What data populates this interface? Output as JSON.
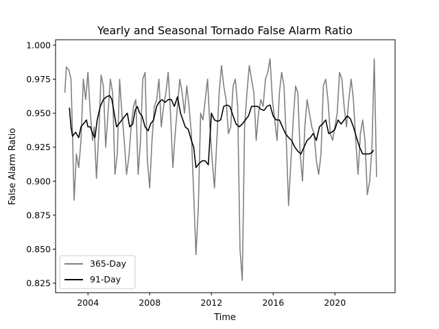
{
  "chart_data": {
    "type": "line",
    "title": "Yearly and Seasonal Tornado False Alarm Ratio",
    "xlabel": "Time",
    "ylabel": "False Alarm Ratio",
    "xlim": [
      2001.9,
      2023.9
    ],
    "ylim": [
      0.818,
      1.004
    ],
    "xticks": [
      2004,
      2008,
      2012,
      2016,
      2020
    ],
    "yticks": [
      0.825,
      0.85,
      0.875,
      0.9,
      0.925,
      0.95,
      0.975,
      1.0
    ],
    "xtick_labels": [
      "2004",
      "2008",
      "2012",
      "2016",
      "2020"
    ],
    "ytick_labels": [
      "0.825",
      "0.850",
      "0.875",
      "0.900",
      "0.925",
      "0.950",
      "0.975",
      "1.000"
    ],
    "grid": false,
    "legend_position": "bottom-left",
    "series": [
      {
        "name": "365-Day",
        "color": "#808080",
        "x": [
          2002.5,
          2002.6,
          2002.75,
          2002.9,
          2003.0,
          2003.1,
          2003.25,
          2003.4,
          2003.55,
          2003.7,
          2003.85,
          2004.0,
          2004.15,
          2004.3,
          2004.4,
          2004.55,
          2004.7,
          2004.85,
          2005.0,
          2005.15,
          2005.3,
          2005.45,
          2005.6,
          2005.75,
          2005.9,
          2006.05,
          2006.2,
          2006.35,
          2006.5,
          2006.65,
          2006.8,
          2006.95,
          2007.1,
          2007.25,
          2007.4,
          2007.55,
          2007.7,
          2007.85,
          2008.0,
          2008.15,
          2008.3,
          2008.45,
          2008.6,
          2008.75,
          2008.9,
          2009.05,
          2009.2,
          2009.35,
          2009.5,
          2009.65,
          2009.8,
          2009.95,
          2010.1,
          2010.25,
          2010.4,
          2010.55,
          2010.7,
          2010.85,
          2011.0,
          2011.15,
          2011.3,
          2011.45,
          2011.6,
          2011.75,
          2011.9,
          2012.05,
          2012.2,
          2012.35,
          2012.5,
          2012.65,
          2012.8,
          2012.95,
          2013.1,
          2013.25,
          2013.4,
          2013.55,
          2013.7,
          2013.85,
          2014.0,
          2014.15,
          2014.3,
          2014.45,
          2014.6,
          2014.75,
          2014.9,
          2015.05,
          2015.2,
          2015.35,
          2015.5,
          2015.65,
          2015.8,
          2015.95,
          2016.1,
          2016.25,
          2016.4,
          2016.55,
          2016.7,
          2016.85,
          2017.0,
          2017.15,
          2017.3,
          2017.45,
          2017.6,
          2017.75,
          2017.9,
          2018.05,
          2018.2,
          2018.35,
          2018.5,
          2018.65,
          2018.8,
          2018.95,
          2019.1,
          2019.25,
          2019.4,
          2019.55,
          2019.7,
          2019.85,
          2020.0,
          2020.15,
          2020.3,
          2020.45,
          2020.6,
          2020.75,
          2020.9,
          2021.05,
          2021.2,
          2021.35,
          2021.5,
          2021.65,
          2021.8,
          2021.95,
          2022.1,
          2022.25,
          2022.4,
          2022.55,
          2022.7
        ],
        "y": [
          0.965,
          0.984,
          0.982,
          0.975,
          0.935,
          0.886,
          0.92,
          0.91,
          0.93,
          0.975,
          0.96,
          0.98,
          0.95,
          0.93,
          0.94,
          0.902,
          0.935,
          0.978,
          0.97,
          0.925,
          0.95,
          0.975,
          0.965,
          0.905,
          0.92,
          0.975,
          0.95,
          0.93,
          0.905,
          0.918,
          0.94,
          0.955,
          0.96,
          0.905,
          0.93,
          0.975,
          0.98,
          0.915,
          0.895,
          0.93,
          0.955,
          0.96,
          0.975,
          0.94,
          0.955,
          0.965,
          0.98,
          0.95,
          0.91,
          0.935,
          0.955,
          0.975,
          0.965,
          0.95,
          0.97,
          0.955,
          0.935,
          0.89,
          0.846,
          0.88,
          0.95,
          0.945,
          0.96,
          0.975,
          0.94,
          0.915,
          0.895,
          0.93,
          0.965,
          0.985,
          0.97,
          0.96,
          0.935,
          0.94,
          0.97,
          0.975,
          0.955,
          0.85,
          0.827,
          0.94,
          0.965,
          0.985,
          0.975,
          0.965,
          0.93,
          0.95,
          0.96,
          0.955,
          0.975,
          0.98,
          0.99,
          0.96,
          0.945,
          0.93,
          0.965,
          0.98,
          0.97,
          0.93,
          0.882,
          0.915,
          0.945,
          0.97,
          0.965,
          0.92,
          0.9,
          0.94,
          0.96,
          0.95,
          0.94,
          0.935,
          0.915,
          0.905,
          0.92,
          0.97,
          0.975,
          0.96,
          0.935,
          0.93,
          0.94,
          0.95,
          0.98,
          0.975,
          0.955,
          0.94,
          0.96,
          0.975,
          0.96,
          0.93,
          0.905,
          0.935,
          0.945,
          0.93,
          0.89,
          0.9,
          0.925,
          0.99,
          0.903
        ]
      },
      {
        "name": "91-Day",
        "color": "#000000",
        "x": [
          2002.8,
          2002.9,
          2003.0,
          2003.2,
          2003.4,
          2003.55,
          2003.7,
          2003.9,
          2004.0,
          2004.15,
          2004.3,
          2004.45,
          2004.6,
          2004.8,
          2005.0,
          2005.2,
          2005.4,
          2005.55,
          2005.7,
          2005.85,
          2006.0,
          2006.2,
          2006.4,
          2006.55,
          2006.7,
          2006.9,
          2007.05,
          2007.2,
          2007.35,
          2007.5,
          2007.7,
          2007.9,
          2008.05,
          2008.25,
          2008.45,
          2008.6,
          2008.8,
          2009.0,
          2009.2,
          2009.4,
          2009.6,
          2009.8,
          2010.0,
          2010.15,
          2010.3,
          2010.5,
          2010.7,
          2010.85,
          2011.0,
          2011.2,
          2011.4,
          2011.6,
          2011.8,
          2012.0,
          2012.2,
          2012.4,
          2012.6,
          2012.8,
          2013.0,
          2013.2,
          2013.4,
          2013.6,
          2013.8,
          2014.0,
          2014.2,
          2014.4,
          2014.6,
          2014.8,
          2015.0,
          2015.2,
          2015.4,
          2015.6,
          2015.8,
          2016.0,
          2016.2,
          2016.4,
          2016.6,
          2016.8,
          2017.0,
          2017.2,
          2017.4,
          2017.6,
          2017.8,
          2018.0,
          2018.2,
          2018.4,
          2018.6,
          2018.8,
          2019.0,
          2019.2,
          2019.4,
          2019.6,
          2019.8,
          2020.0,
          2020.2,
          2020.4,
          2020.6,
          2020.8,
          2021.0,
          2021.2,
          2021.4,
          2021.6,
          2021.8,
          2022.0,
          2022.2,
          2022.4,
          2022.5
        ],
        "y": [
          0.954,
          0.94,
          0.933,
          0.936,
          0.932,
          0.94,
          0.942,
          0.945,
          0.94,
          0.94,
          0.935,
          0.932,
          0.945,
          0.955,
          0.96,
          0.962,
          0.963,
          0.96,
          0.95,
          0.94,
          0.942,
          0.945,
          0.948,
          0.95,
          0.94,
          0.942,
          0.952,
          0.955,
          0.95,
          0.948,
          0.94,
          0.937,
          0.942,
          0.945,
          0.955,
          0.958,
          0.96,
          0.958,
          0.96,
          0.96,
          0.955,
          0.962,
          0.95,
          0.945,
          0.94,
          0.938,
          0.93,
          0.925,
          0.91,
          0.913,
          0.915,
          0.915,
          0.912,
          0.95,
          0.945,
          0.944,
          0.945,
          0.955,
          0.956,
          0.955,
          0.948,
          0.942,
          0.94,
          0.942,
          0.945,
          0.948,
          0.955,
          0.955,
          0.955,
          0.953,
          0.952,
          0.955,
          0.956,
          0.948,
          0.945,
          0.945,
          0.94,
          0.935,
          0.932,
          0.93,
          0.925,
          0.922,
          0.92,
          0.925,
          0.93,
          0.932,
          0.935,
          0.93,
          0.94,
          0.942,
          0.945,
          0.935,
          0.936,
          0.938,
          0.945,
          0.942,
          0.945,
          0.948,
          0.946,
          0.94,
          0.932,
          0.925,
          0.92,
          0.92,
          0.92,
          0.921,
          0.923
        ]
      }
    ]
  }
}
